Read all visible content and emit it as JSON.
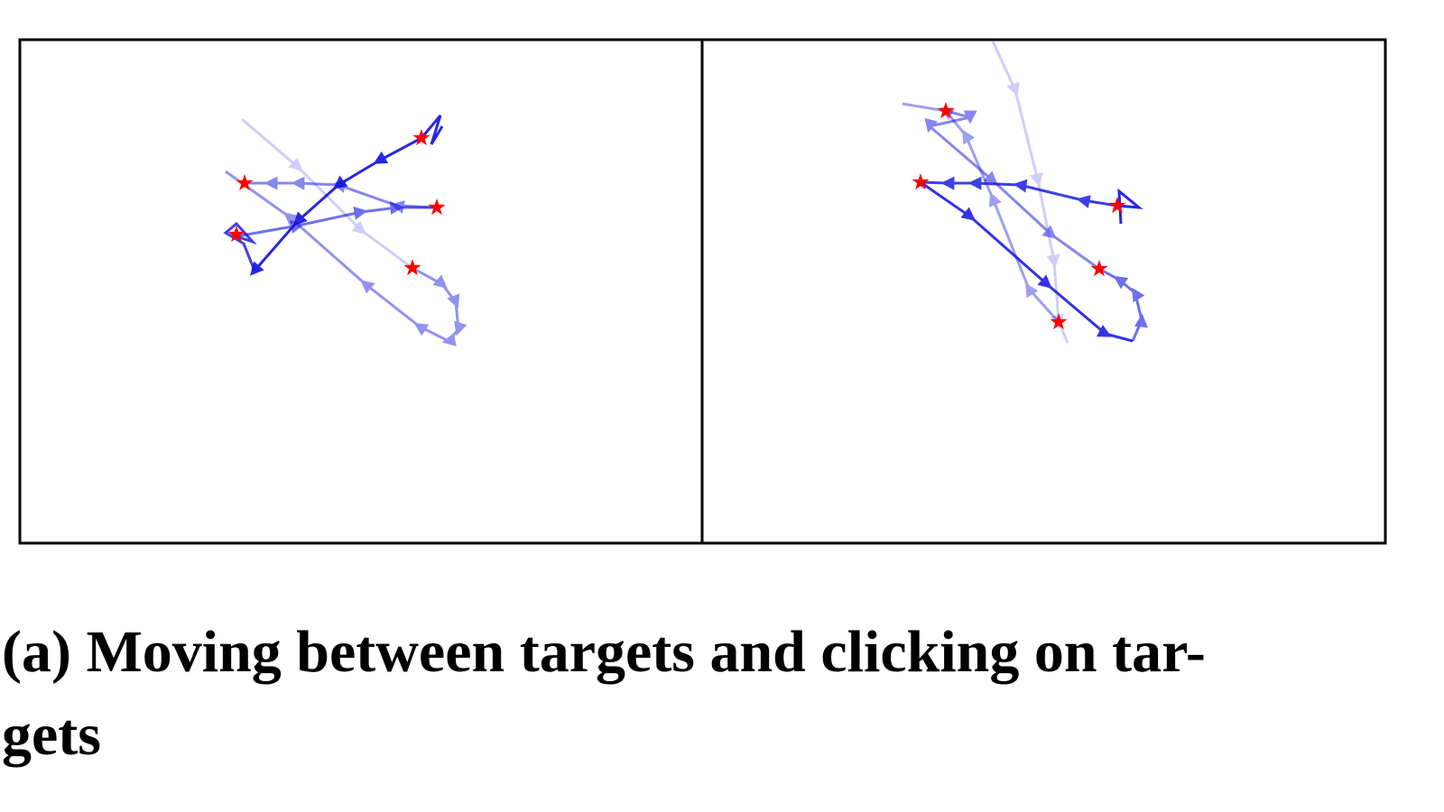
{
  "figure": {
    "caption": {
      "lines": [
        "(a) Moving between targets and clicking on tar-",
        "gets"
      ]
    }
  }
}
